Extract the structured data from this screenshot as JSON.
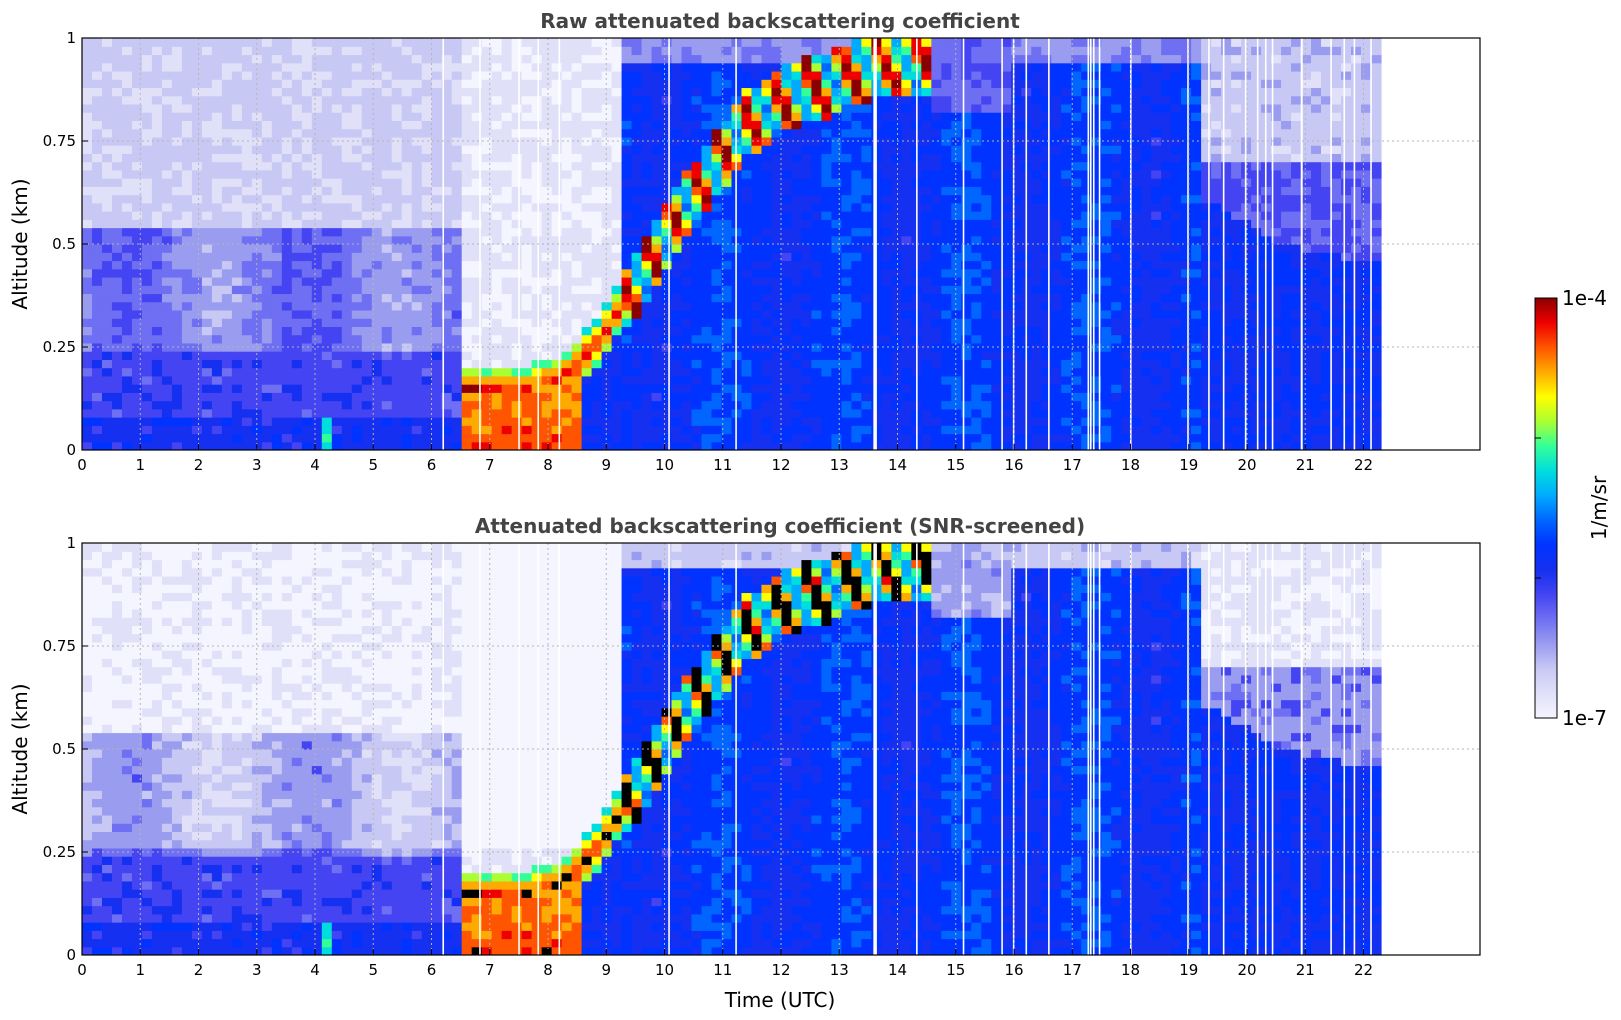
{
  "colors": {
    "scale": [
      "#f5f5ff",
      "#e0e0f8",
      "#c8c8f5",
      "#9a9cf0",
      "#6e6ff2",
      "#4444f2",
      "#1530f0",
      "#0033ff",
      "#0066ff",
      "#00aaff",
      "#00dddd",
      "#33ff99",
      "#aaff33",
      "#ffff00",
      "#ffaa00",
      "#ff5500",
      "#ee0000",
      "#8b0000"
    ],
    "screened_peak": "#000000",
    "gap": "#ffffff",
    "frame": "#000000"
  },
  "chart_data": [
    {
      "type": "heatmap",
      "title": "Raw attenuated backscattering coefficient",
      "xlabel": "",
      "ylabel": "Altitude (km)",
      "xlim": [
        0,
        24
      ],
      "ylim": [
        0,
        1
      ],
      "x_ticks": [
        "0",
        "1",
        "2",
        "3",
        "4",
        "5",
        "6",
        "7",
        "8",
        "9",
        "10",
        "11",
        "12",
        "13",
        "14",
        "15",
        "16",
        "17",
        "18",
        "19",
        "20",
        "21",
        "22"
      ],
      "y_ticks": [
        "0",
        "0.25",
        "0.5",
        "0.75",
        "1"
      ],
      "data_end_time": 22.3,
      "grid": true,
      "colorbar": {
        "label": "1/m/sr",
        "min_label": "1e-7",
        "max_label": "1e-4",
        "scale": "log"
      },
      "features": {
        "surface_layer_top_km": [
          [
            0,
            0.09
          ],
          [
            4,
            0.08
          ],
          [
            6.5,
            0.07
          ]
        ],
        "morning_low_signal_window_utc": [
          6.5,
          9.2
        ],
        "rising_aerosol_layer_km": [
          [
            6.6,
            0.15
          ],
          [
            7.5,
            0.14
          ],
          [
            8.2,
            0.17
          ],
          [
            8.8,
            0.25
          ],
          [
            9.4,
            0.38
          ],
          [
            10.0,
            0.52
          ],
          [
            10.7,
            0.65
          ],
          [
            11.3,
            0.78
          ],
          [
            12.0,
            0.85
          ],
          [
            13.0,
            0.9
          ],
          [
            14.0,
            0.95
          ]
        ],
        "mixed_layer_utc": [
          10,
          19.2
        ],
        "evening_layer_top_km": [
          [
            19.5,
            0.6
          ],
          [
            20.5,
            0.5
          ],
          [
            22.3,
            0.45
          ]
        ]
      }
    },
    {
      "type": "heatmap",
      "title": "Attenuated backscattering coefficient (SNR-screened)",
      "xlabel": "Time (UTC)",
      "ylabel": "Altitude (km)",
      "xlim": [
        0,
        24
      ],
      "ylim": [
        0,
        1
      ],
      "x_ticks": [
        "0",
        "1",
        "2",
        "3",
        "4",
        "5",
        "6",
        "7",
        "8",
        "9",
        "10",
        "11",
        "12",
        "13",
        "14",
        "15",
        "16",
        "17",
        "18",
        "19",
        "20",
        "21",
        "22"
      ],
      "y_ticks": [
        "0",
        "0.25",
        "0.5",
        "0.75",
        "1"
      ],
      "data_end_time": 22.3,
      "grid": true,
      "colorbar": {
        "label": "1/m/sr",
        "min_label": "1e-7",
        "max_label": "1e-4",
        "scale": "log"
      },
      "features": {
        "surface_layer_top_km": [
          [
            0,
            0.09
          ],
          [
            4,
            0.08
          ],
          [
            6.5,
            0.07
          ]
        ],
        "morning_low_signal_window_utc": [
          6.5,
          9.2
        ],
        "rising_aerosol_layer_km": [
          [
            6.6,
            0.15
          ],
          [
            7.5,
            0.14
          ],
          [
            8.2,
            0.17
          ],
          [
            8.8,
            0.25
          ],
          [
            9.4,
            0.38
          ],
          [
            10.0,
            0.52
          ],
          [
            10.7,
            0.65
          ],
          [
            11.3,
            0.78
          ],
          [
            12.0,
            0.85
          ],
          [
            13.0,
            0.9
          ],
          [
            14.0,
            0.95
          ]
        ],
        "mixed_layer_utc": [
          10,
          19.2
        ],
        "evening_layer_top_km": [
          [
            19.5,
            0.6
          ],
          [
            20.5,
            0.5
          ],
          [
            22.3,
            0.45
          ]
        ]
      }
    }
  ],
  "colorbar": {
    "label": "1/m/sr",
    "top_label": "1e-4",
    "bottom_label": "1e-7"
  }
}
